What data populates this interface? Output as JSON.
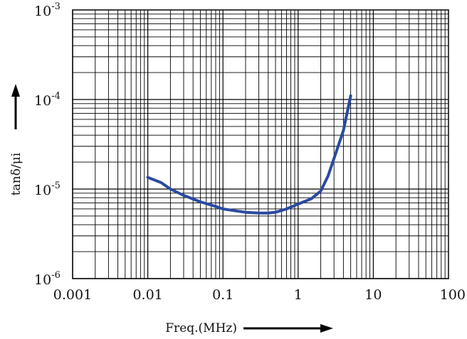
{
  "chart_data": {
    "type": "line",
    "xscale": "log",
    "yscale": "log",
    "xlim": [
      0.001,
      100
    ],
    "ylim": [
      1e-06,
      0.001
    ],
    "grid": true,
    "xlabel": "Freq.(MHz)",
    "ylabel": "tanδ/μi",
    "x_tick_labels": [
      "0.001",
      "0.01",
      "0.1",
      "1",
      "10",
      "100"
    ],
    "y_tick_labels": [
      {
        "base": "10",
        "exp": "-6"
      },
      {
        "base": "10",
        "exp": "-5"
      },
      {
        "base": "10",
        "exp": "-4"
      },
      {
        "base": "10",
        "exp": "-3"
      }
    ],
    "series": [
      {
        "color": "#2a4aa0",
        "x": [
          0.01,
          0.015,
          0.02,
          0.03,
          0.05,
          0.08,
          0.1,
          0.15,
          0.2,
          0.3,
          0.4,
          0.5,
          0.7,
          1.0,
          1.5,
          2.0,
          2.5,
          3.0,
          4.0,
          5.0
        ],
        "y": [
          1.35e-05,
          1.18e-05,
          1e-05,
          8.5e-06,
          7.2e-06,
          6.4e-06,
          6e-06,
          5.7e-06,
          5.5e-06,
          5.4e-06,
          5.4e-06,
          5.5e-06,
          6e-06,
          6.8e-06,
          7.8e-06,
          9.5e-06,
          1.4e-05,
          2.2e-05,
          4.5e-05,
          0.00011
        ]
      }
    ]
  }
}
